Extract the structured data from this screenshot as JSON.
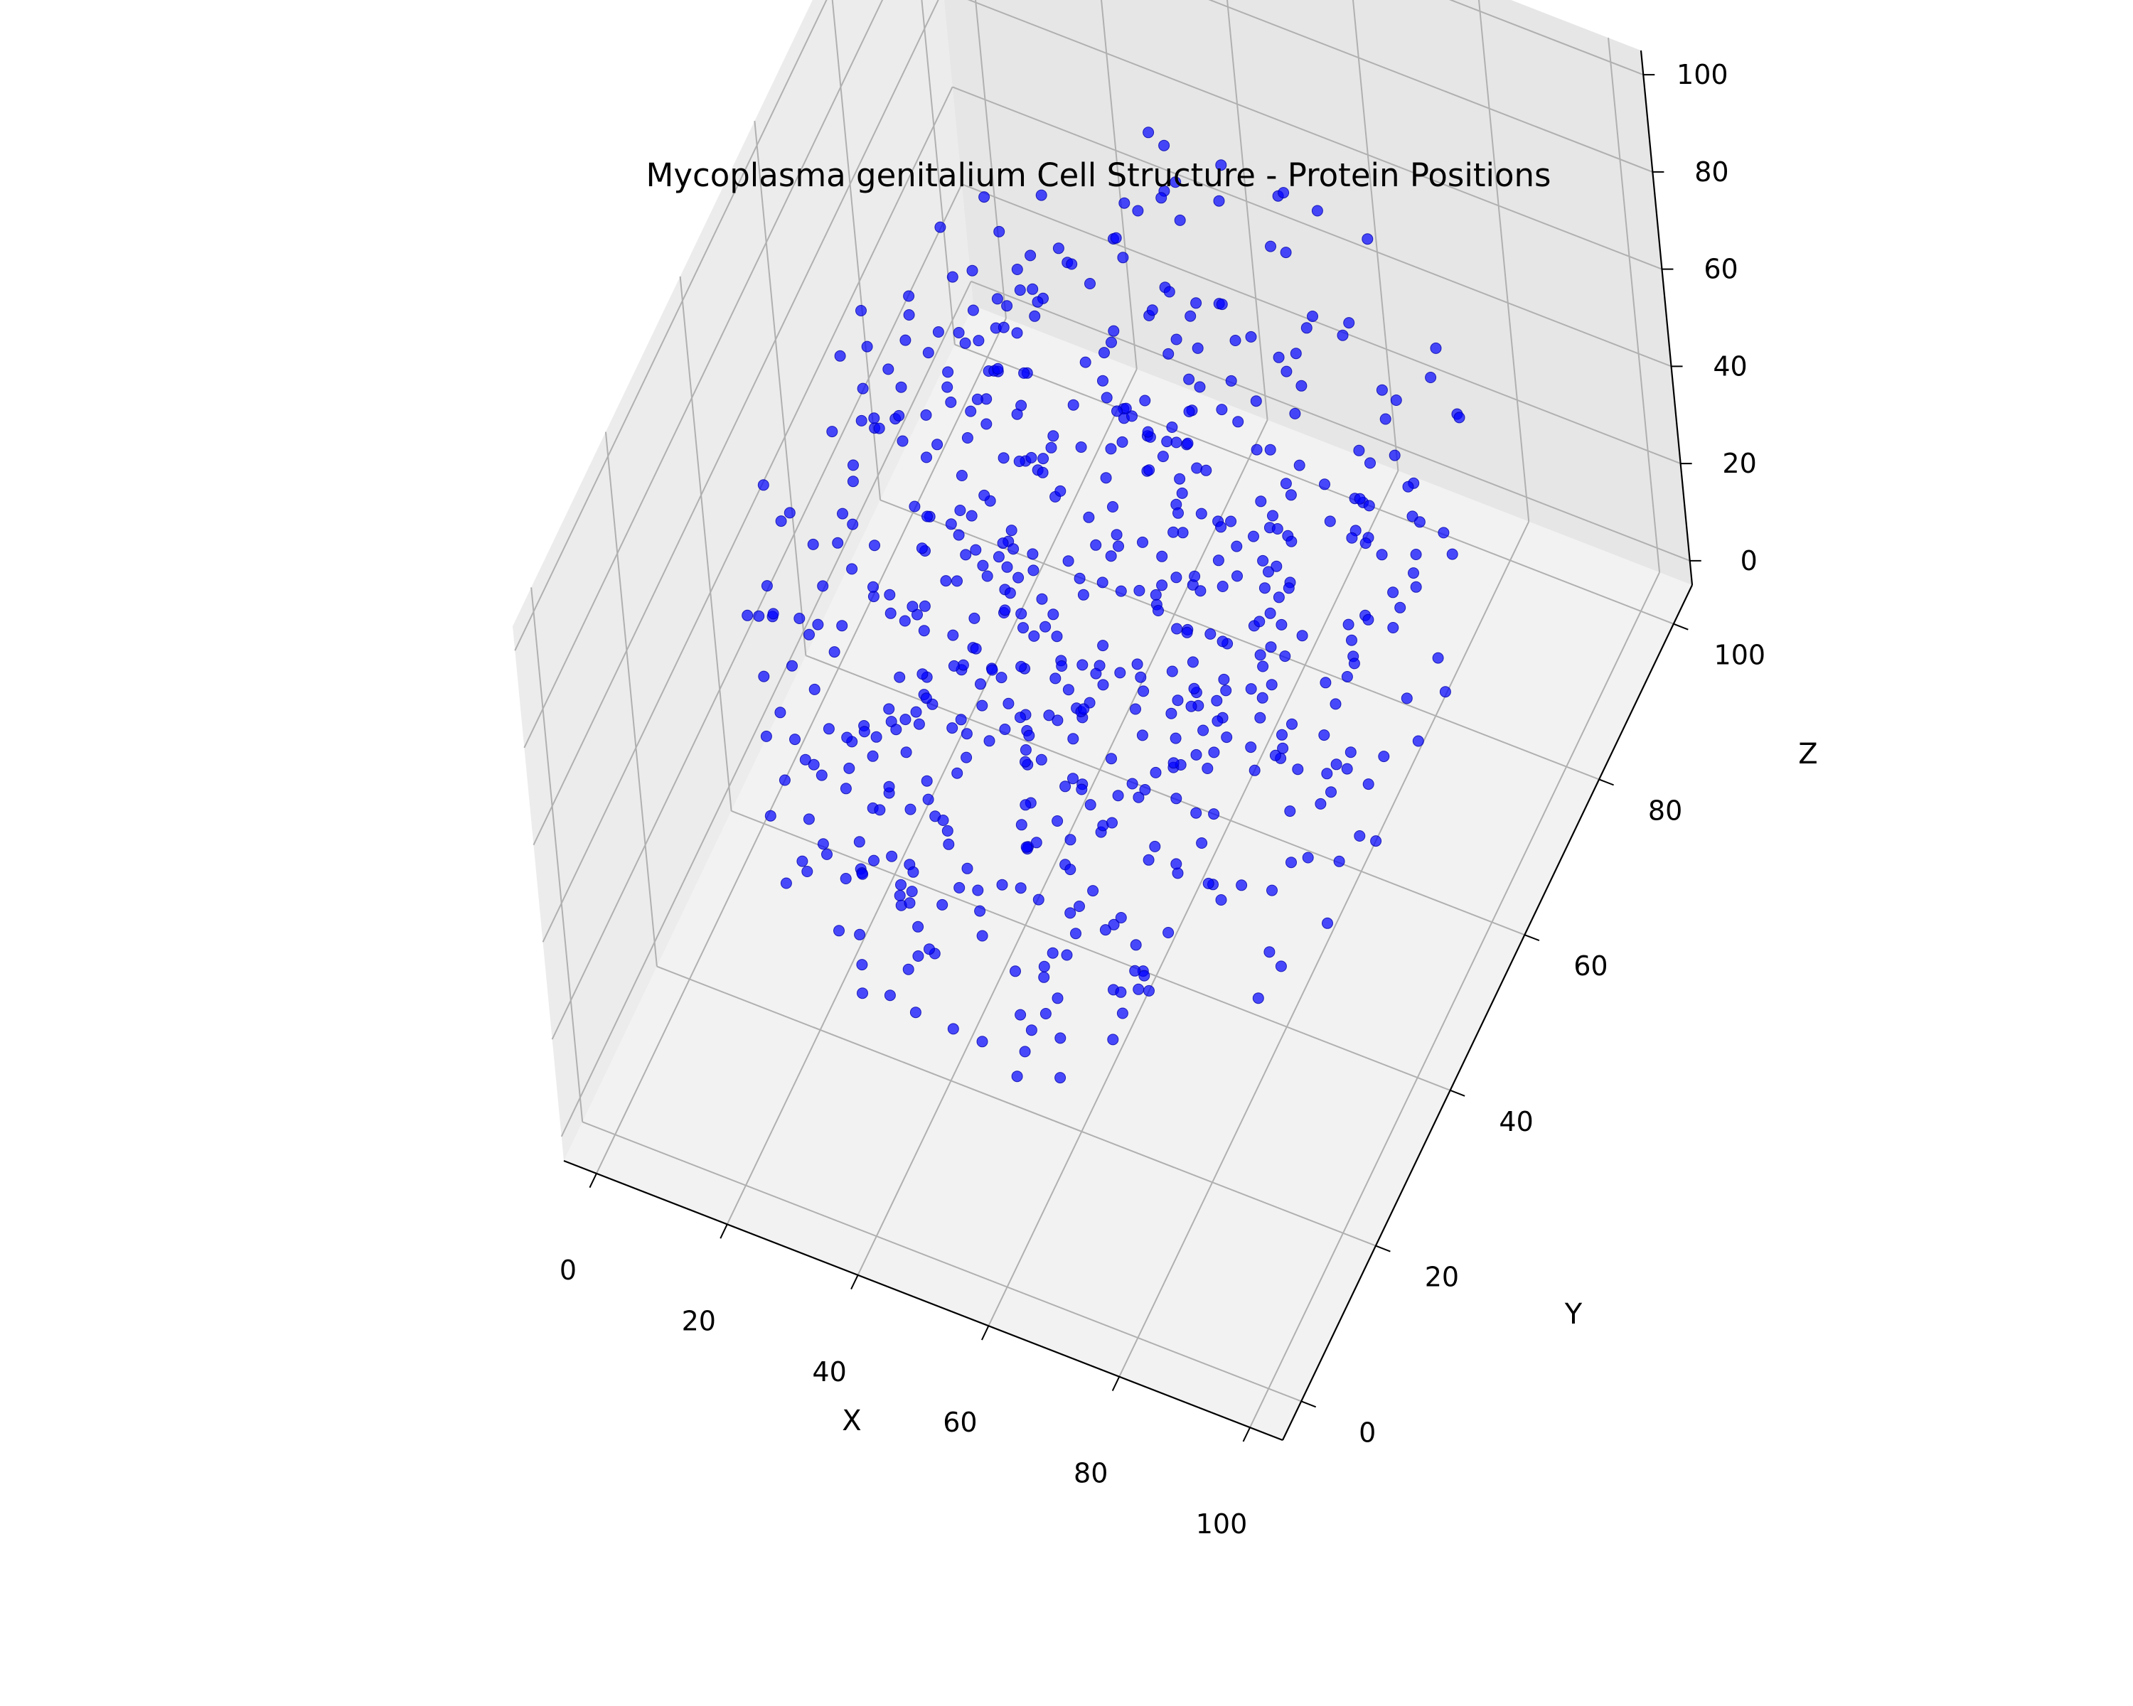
{
  "chart_data": {
    "type": "scatter",
    "projection": "3d",
    "title": "Mycoplasma genitalium Cell Structure - Protein Positions",
    "xlabel": "X",
    "ylabel": "Y",
    "zlabel": "Z",
    "xlim": [
      -5,
      105
    ],
    "ylim": [
      -5,
      105
    ],
    "zlim": [
      -5,
      105
    ],
    "xticks": [
      "0",
      "20",
      "40",
      "60",
      "80",
      "100"
    ],
    "yticks": [
      "0",
      "20",
      "40",
      "60",
      "80",
      "100"
    ],
    "zticks": [
      "0",
      "20",
      "40",
      "60",
      "80",
      "100"
    ],
    "grid": true,
    "legend": "none",
    "marker_color": "#0000ff",
    "pane_color": "#f2f2f2",
    "point_count": 600,
    "distribution": "roughly uniform within a sphere of radius ~50 centred at (50, 50, 50)"
  }
}
